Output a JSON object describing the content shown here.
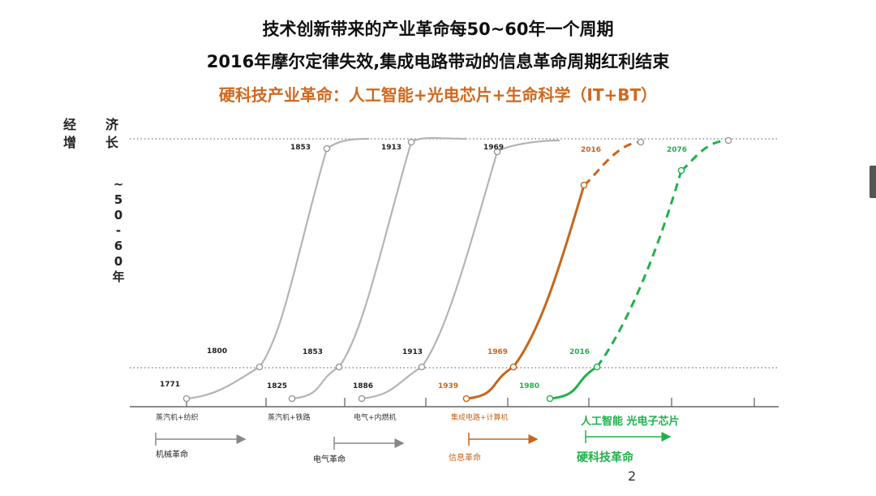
{
  "titles": {
    "line1": "技术创新带来的产业革命每50~60年一个周期",
    "line2": "2016年摩尔定律失效,集成电路带动的信息革命周期红利结束",
    "line3": "硬科技产业革命：人工智能+光电芯片+生命科学（IT+BT）"
  },
  "y_axis": {
    "label_a": "经增",
    "label_b": "济长",
    "label_c": "~50-60年"
  },
  "colors": {
    "gray": "#b4b4b4",
    "orange": "#c8651c",
    "green": "#1fb24a",
    "axis": "#666666"
  },
  "waves": [
    {
      "id": "wave-1",
      "color": "gray",
      "dashed_top": false,
      "low_year": "1771",
      "mid_year": "1800",
      "top_year": "1853",
      "caption": "蒸汽机+纺织",
      "era_label": "机械革命"
    },
    {
      "id": "wave-2",
      "color": "gray",
      "dashed_top": false,
      "low_year": "1825",
      "mid_year": "1853",
      "top_year": "1913",
      "caption": "蒸汽机+铁路",
      "era_label": "电气革命"
    },
    {
      "id": "wave-3",
      "color": "gray",
      "dashed_top": false,
      "low_year": "1886",
      "mid_year": "1913",
      "top_year": "1969",
      "caption": "电气+内燃机",
      "era_label": ""
    },
    {
      "id": "wave-4",
      "color": "orange",
      "dashed_top": true,
      "low_year": "1939",
      "mid_year": "1969",
      "top_year": "2016",
      "caption": "集成电路+计算机",
      "era_label": "信息革命"
    },
    {
      "id": "wave-5",
      "color": "green",
      "dashed_top": true,
      "low_year": "1980",
      "mid_year": "2016",
      "top_year": "2076",
      "caption": "人工智能 光电子芯片",
      "era_label": "硬科技革命"
    }
  ],
  "page_number": "2"
}
